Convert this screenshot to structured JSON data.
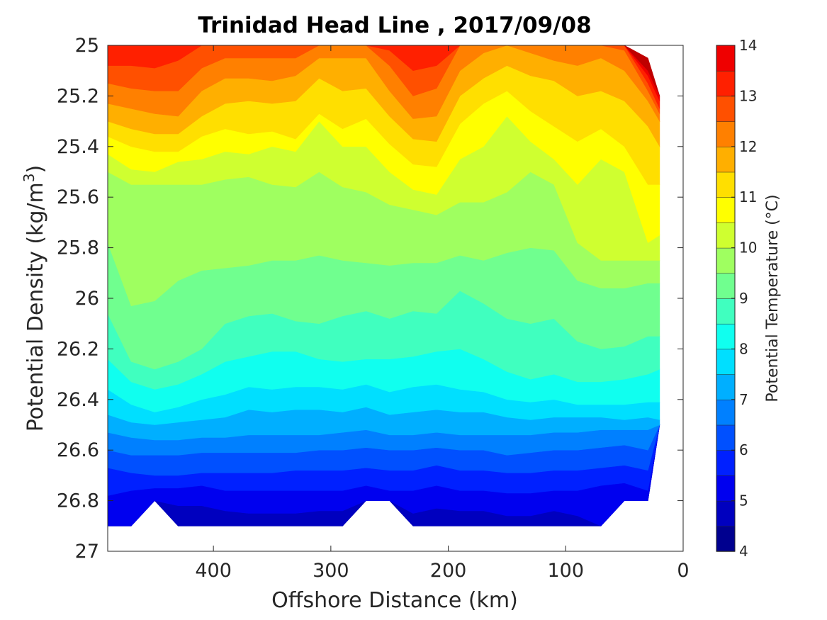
{
  "title": "Trinidad Head Line , 2017/09/08",
  "chart_data": {
    "type": "filled-contour",
    "title": "Trinidad Head Line , 2017/09/08",
    "xlabel": "Offshore Distance (km)",
    "ylabel": "Potential Density (kg/m",
    "ylabel_sup": "3",
    "ylabel_close": ")",
    "xlim": [
      490,
      0
    ],
    "ylim": [
      25,
      27
    ],
    "x_reversed": true,
    "y_reversed": true,
    "xticks": [
      400,
      300,
      200,
      100,
      0
    ],
    "xtick_labels": [
      "400",
      "300",
      "200",
      "100",
      "0"
    ],
    "yticks": [
      25,
      25.2,
      25.4,
      25.6,
      25.8,
      26,
      26.2,
      26.4,
      26.6,
      26.8,
      27
    ],
    "ytick_labels": [
      "25",
      "25.2",
      "25.4",
      "25.6",
      "25.8",
      "26",
      "26.2",
      "26.4",
      "26.6",
      "26.8",
      "27"
    ],
    "colorbar": {
      "label": "Potential Temperature (°C)",
      "range": [
        4,
        14
      ],
      "ticks": [
        "4",
        "5",
        "6",
        "7",
        "8",
        "9",
        "10",
        "11",
        "12",
        "13",
        "14"
      ],
      "levels": [
        4,
        4.5,
        5,
        5.5,
        6,
        6.5,
        7,
        7.5,
        8,
        8.5,
        9,
        9.5,
        10,
        10.5,
        11,
        11.5,
        12,
        12.5,
        13,
        13.5,
        14
      ]
    },
    "x_stations": [
      490,
      470,
      450,
      430,
      410,
      390,
      370,
      350,
      330,
      310,
      290,
      270,
      250,
      230,
      210,
      190,
      170,
      150,
      130,
      110,
      90,
      70,
      50,
      30,
      20
    ],
    "data_top_density": [
      25,
      25,
      25,
      25,
      25,
      25,
      25,
      25,
      25,
      25,
      25,
      25,
      25,
      25,
      25,
      25,
      25,
      25,
      25,
      25,
      25,
      25,
      25,
      25.05,
      25.2
    ],
    "data_bottom_density": [
      26.9,
      26.9,
      26.8,
      26.9,
      26.9,
      26.9,
      26.9,
      26.9,
      26.9,
      26.9,
      26.9,
      26.8,
      26.8,
      26.9,
      26.9,
      26.9,
      26.9,
      26.9,
      26.9,
      26.9,
      26.9,
      26.9,
      26.8,
      26.8,
      26.5
    ],
    "isotherms": [
      {
        "temp": 13.5,
        "density": [
          25.0,
          25.0,
          25.0,
          25.0,
          25.0,
          25.0,
          25.0,
          25.0,
          25.0,
          25.0,
          25.0,
          25.0,
          25.0,
          25.0,
          25.0,
          25.0,
          25.0,
          25.0,
          25.0,
          25.0,
          25.0,
          25.0,
          25.0,
          25.1,
          25.2
        ]
      },
      {
        "temp": 13.0,
        "density": [
          25.0,
          25.0,
          25.0,
          25.0,
          25.0,
          25.0,
          25.0,
          25.0,
          25.0,
          25.0,
          25.0,
          25.0,
          25.0,
          25.0,
          25.0,
          25.0,
          25.0,
          25.0,
          25.0,
          25.0,
          25.0,
          25.0,
          25.0,
          25.12,
          25.22
        ]
      },
      {
        "temp": 12.5,
        "density": [
          25.08,
          25.08,
          25.09,
          25.06,
          25.0,
          25.0,
          25.0,
          25.0,
          25.0,
          25.0,
          25.0,
          25.0,
          25.02,
          25.1,
          25.08,
          25.0,
          25.0,
          25.0,
          25.0,
          25.0,
          25.0,
          25.0,
          25.0,
          25.15,
          25.25
        ]
      },
      {
        "temp": 12.0,
        "density": [
          25.15,
          25.17,
          25.18,
          25.18,
          25.09,
          25.05,
          25.05,
          25.05,
          25.05,
          25.0,
          25.0,
          25.0,
          25.08,
          25.2,
          25.17,
          25.0,
          25.0,
          25.0,
          25.0,
          25.0,
          25.0,
          25.0,
          25.02,
          25.18,
          25.27
        ]
      },
      {
        "temp": 11.5,
        "density": [
          25.23,
          25.25,
          25.27,
          25.28,
          25.18,
          25.13,
          25.13,
          25.14,
          25.12,
          25.05,
          25.05,
          25.05,
          25.18,
          25.29,
          25.28,
          25.1,
          25.03,
          25.0,
          25.03,
          25.06,
          25.08,
          25.05,
          25.1,
          25.22,
          25.3
        ]
      },
      {
        "temp": 11.0,
        "density": [
          25.3,
          25.33,
          25.35,
          25.35,
          25.28,
          25.23,
          25.22,
          25.23,
          25.22,
          25.13,
          25.18,
          25.17,
          25.28,
          25.37,
          25.38,
          25.2,
          25.13,
          25.08,
          25.12,
          25.14,
          25.2,
          25.18,
          25.22,
          25.32,
          25.4
        ]
      },
      {
        "temp": 10.5,
        "density": [
          25.36,
          25.4,
          25.42,
          25.42,
          25.36,
          25.33,
          25.35,
          25.34,
          25.37,
          25.27,
          25.33,
          25.29,
          25.39,
          25.47,
          25.48,
          25.31,
          25.23,
          25.18,
          25.26,
          25.32,
          25.38,
          25.33,
          25.4,
          25.55,
          25.55
        ]
      },
      {
        "temp": 10.0,
        "density": [
          25.43,
          25.49,
          25.5,
          25.46,
          25.45,
          25.42,
          25.43,
          25.4,
          25.42,
          25.3,
          25.4,
          25.4,
          25.5,
          25.57,
          25.59,
          25.45,
          25.4,
          25.28,
          25.38,
          25.45,
          25.55,
          25.45,
          25.5,
          25.78,
          25.75
        ]
      },
      {
        "temp": 9.5,
        "density": [
          25.5,
          25.55,
          25.55,
          25.55,
          25.55,
          25.53,
          25.52,
          25.55,
          25.56,
          25.5,
          25.56,
          25.58,
          25.63,
          25.65,
          25.67,
          25.62,
          25.62,
          25.58,
          25.5,
          25.55,
          25.78,
          25.85,
          25.85,
          25.85,
          25.85
        ]
      },
      {
        "temp": 9.0,
        "density": [
          25.78,
          26.03,
          26.01,
          25.93,
          25.89,
          25.88,
          25.87,
          25.85,
          25.85,
          25.83,
          25.85,
          25.86,
          25.87,
          25.86,
          25.86,
          25.83,
          25.85,
          25.82,
          25.8,
          25.81,
          25.93,
          25.96,
          25.96,
          25.94,
          25.94
        ]
      },
      {
        "temp": 8.5,
        "density": [
          26.06,
          26.25,
          26.28,
          26.25,
          26.2,
          26.1,
          26.07,
          26.06,
          26.09,
          26.1,
          26.07,
          26.05,
          26.08,
          26.05,
          26.06,
          25.97,
          26.02,
          26.08,
          26.1,
          26.08,
          26.17,
          26.2,
          26.19,
          26.15,
          26.15
        ]
      },
      {
        "temp": 8.0,
        "density": [
          26.24,
          26.33,
          26.36,
          26.34,
          26.3,
          26.25,
          26.23,
          26.21,
          26.21,
          26.24,
          26.25,
          26.24,
          26.24,
          26.23,
          26.21,
          26.2,
          26.24,
          26.29,
          26.32,
          26.3,
          26.33,
          26.33,
          26.32,
          26.3,
          26.28
        ]
      },
      {
        "temp": 7.5,
        "density": [
          26.36,
          26.42,
          26.45,
          26.43,
          26.4,
          26.38,
          26.35,
          26.36,
          26.35,
          26.35,
          26.36,
          26.34,
          26.37,
          26.35,
          26.34,
          26.36,
          26.37,
          26.4,
          26.41,
          26.4,
          26.42,
          26.42,
          26.42,
          26.41,
          26.41
        ]
      },
      {
        "temp": 7.0,
        "density": [
          26.46,
          26.49,
          26.5,
          26.49,
          26.48,
          26.47,
          26.44,
          26.45,
          26.44,
          26.44,
          26.45,
          26.43,
          26.46,
          26.45,
          26.44,
          26.45,
          26.45,
          26.47,
          26.48,
          26.47,
          26.47,
          26.47,
          26.48,
          26.47,
          26.48
        ]
      },
      {
        "temp": 6.5,
        "density": [
          26.53,
          26.55,
          26.56,
          26.56,
          26.55,
          26.55,
          26.54,
          26.54,
          26.54,
          26.54,
          26.53,
          26.52,
          26.54,
          26.54,
          26.53,
          26.54,
          26.54,
          26.54,
          26.54,
          26.53,
          26.53,
          26.52,
          26.52,
          26.52,
          26.52
        ]
      },
      {
        "temp": 6.0,
        "density": [
          26.6,
          26.62,
          26.62,
          26.62,
          26.61,
          26.61,
          26.61,
          26.61,
          26.61,
          26.6,
          26.6,
          26.59,
          26.6,
          26.6,
          26.59,
          26.6,
          26.6,
          26.62,
          26.61,
          26.6,
          26.6,
          26.59,
          26.58,
          26.6,
          26.6
        ]
      },
      {
        "temp": 5.5,
        "density": [
          26.67,
          26.69,
          26.7,
          26.7,
          26.69,
          26.69,
          26.69,
          26.69,
          26.68,
          26.68,
          26.68,
          26.67,
          26.68,
          26.68,
          26.66,
          26.68,
          26.68,
          26.69,
          26.69,
          26.68,
          26.68,
          26.67,
          26.66,
          26.68,
          26.68
        ]
      },
      {
        "temp": 5.0,
        "density": [
          26.78,
          26.76,
          26.75,
          26.75,
          26.74,
          26.76,
          26.76,
          26.76,
          26.76,
          26.76,
          26.76,
          26.74,
          26.76,
          26.76,
          26.74,
          26.76,
          26.76,
          26.77,
          26.77,
          26.76,
          26.76,
          26.74,
          26.73,
          26.76,
          26.76
        ]
      },
      {
        "temp": 4.5,
        "density": [
          26.9,
          26.9,
          26.9,
          26.82,
          26.82,
          26.84,
          26.85,
          26.85,
          26.85,
          26.84,
          26.84,
          26.82,
          26.84,
          26.85,
          26.83,
          26.84,
          26.84,
          26.86,
          26.86,
          26.84,
          26.86,
          26.9,
          26.9,
          26.9,
          26.9
        ]
      },
      {
        "temp": 4.0,
        "density": [
          26.9,
          26.9,
          26.9,
          26.9,
          26.9,
          26.9,
          26.9,
          26.9,
          26.9,
          26.9,
          26.9,
          26.9,
          26.9,
          26.9,
          26.9,
          26.9,
          26.9,
          26.9,
          26.9,
          26.9,
          26.9,
          26.9,
          26.9,
          26.9,
          26.9
        ]
      }
    ],
    "band_colors": [
      "#00008F",
      "#0000BF",
      "#0000EF",
      "#0020FF",
      "#0050FF",
      "#0080FF",
      "#00AFFF",
      "#00DFFF",
      "#10FFEF",
      "#40FFBF",
      "#70FF8F",
      "#9FFF60",
      "#CFFF30",
      "#FFFF00",
      "#FFDF00",
      "#FFAF00",
      "#FF8000",
      "#FF5000",
      "#FF2000",
      "#EF0000",
      "#BF0000",
      "#8F0000"
    ]
  }
}
